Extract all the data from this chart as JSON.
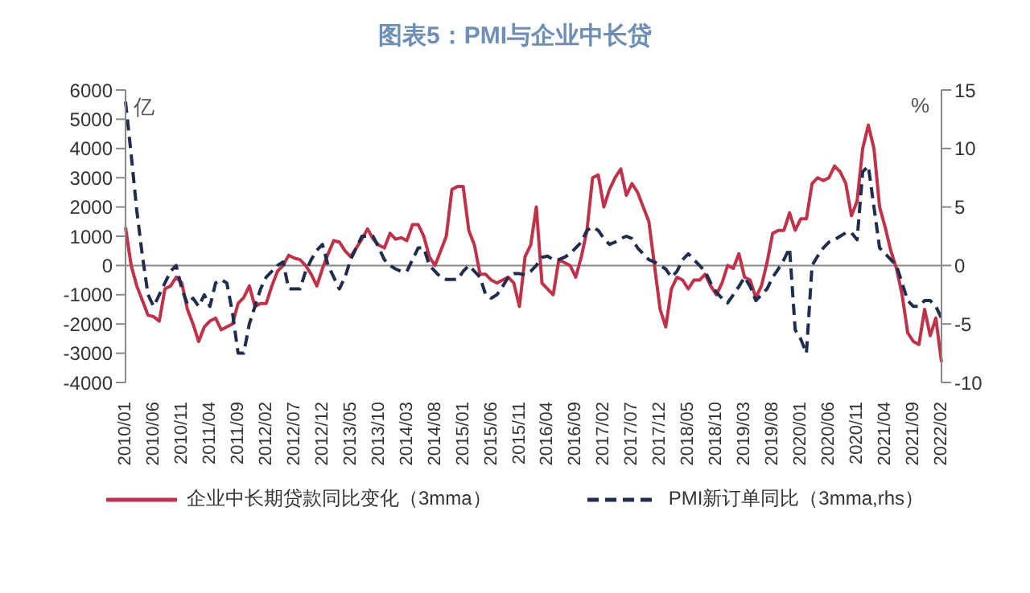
{
  "chart_data": {
    "type": "line",
    "title": "图表5：PMI与企业中长贷",
    "ylabel": "亿",
    "y2label": "%",
    "categories": [
      "2010/01",
      null,
      null,
      null,
      null,
      "2010/06",
      null,
      null,
      null,
      null,
      "2010/11",
      null,
      null,
      null,
      null,
      "2011/04",
      null,
      null,
      null,
      null,
      "2011/09",
      null,
      null,
      null,
      null,
      "2012/02",
      null,
      null,
      null,
      null,
      "2012/07",
      null,
      null,
      null,
      null,
      "2012/12",
      null,
      null,
      null,
      null,
      "2013/05",
      null,
      null,
      null,
      null,
      "2013/10",
      null,
      null,
      null,
      null,
      "2014/03",
      null,
      null,
      null,
      null,
      "2014/08",
      null,
      null,
      null,
      null,
      "2015/01",
      null,
      null,
      null,
      null,
      "2015/06",
      null,
      null,
      null,
      null,
      "2015/11",
      null,
      null,
      null,
      null,
      "2016/04",
      null,
      null,
      null,
      null,
      "2016/09",
      null,
      null,
      null,
      null,
      "2017/02",
      null,
      null,
      null,
      null,
      "2017/07",
      null,
      null,
      null,
      null,
      "2017/12",
      null,
      null,
      null,
      null,
      "2018/05",
      null,
      null,
      null,
      null,
      "2018/10",
      null,
      null,
      null,
      null,
      "2019/03",
      null,
      null,
      null,
      null,
      "2019/08",
      null,
      null,
      null,
      null,
      "2020/01",
      null,
      null,
      null,
      null,
      "2020/06",
      null,
      null,
      null,
      null,
      "2020/11",
      null,
      null,
      null,
      null,
      "2021/04",
      null,
      null,
      null,
      null,
      "2021/09",
      null,
      null,
      null,
      null,
      "2022/02"
    ],
    "series": [
      {
        "name": "企业中长期贷款同比变化（3mma）",
        "color": "#c0324a",
        "line_style": "solid",
        "values": [
          1300,
          0,
          -700,
          -1200,
          -1700,
          -1750,
          -1900,
          -800,
          -700,
          -400,
          -600,
          -1500,
          -2000,
          -2600,
          -2100,
          -1900,
          -1800,
          -2200,
          -2100,
          -2000,
          -1300,
          -1100,
          -700,
          -1400,
          -1300,
          -1300,
          -700,
          -200,
          0,
          350,
          250,
          200,
          0,
          -300,
          -700,
          -100,
          400,
          850,
          800,
          500,
          300,
          600,
          900,
          1250,
          900,
          700,
          600,
          1100,
          900,
          950,
          850,
          1400,
          1400,
          1000,
          300,
          0,
          500,
          1000,
          2600,
          2700,
          2700,
          1200,
          700,
          -300,
          -300,
          -500,
          -600,
          -500,
          -400,
          -600,
          -1400,
          300,
          700,
          2000,
          -600,
          -800,
          -1000,
          200,
          100,
          0,
          -400,
          300,
          1200,
          3000,
          3100,
          2000,
          2600,
          3000,
          3300,
          2400,
          2800,
          2500,
          2000,
          1500,
          0,
          -1500,
          -2100,
          -800,
          -400,
          -500,
          -800,
          -500,
          -500,
          -300,
          -700,
          -1000,
          -600,
          0,
          -100,
          400,
          -400,
          -500,
          -1100,
          -700,
          100,
          1100,
          1200,
          1200,
          1800,
          1200,
          1600,
          1600,
          2800,
          3000,
          2900,
          3000,
          3400,
          3200,
          2800,
          1700,
          2200,
          4000,
          4800,
          4000,
          2000,
          1300,
          500,
          -100,
          -1000,
          -2300,
          -2600,
          -2700,
          -1500,
          -2400,
          -1800,
          -3300
        ]
      },
      {
        "name": "PMI新订单同比（3mma,rhs）",
        "color": "#1f2d4f",
        "line_style": "dashed",
        "axis": "y2",
        "values": [
          14,
          9.5,
          4.7,
          0.8,
          -2.5,
          -3.5,
          -2.5,
          -1.5,
          -0.5,
          0,
          -2,
          -3.3,
          -2.8,
          -3.5,
          -2.5,
          -3.5,
          -1.5,
          -1.2,
          -1.5,
          -4,
          -7.5,
          -7.5,
          -5,
          -3.5,
          -2,
          -1,
          -0.5,
          0,
          0.3,
          -2,
          -2,
          -2,
          -0.5,
          0.5,
          1.3,
          1.8,
          0,
          -1,
          -2,
          -1,
          0.5,
          1.5,
          2.5,
          2.5,
          2.5,
          1.5,
          0.5,
          0,
          -0.3,
          -0.5,
          -0.5,
          0.5,
          1.5,
          1.5,
          0,
          -0.5,
          -1,
          -1.2,
          -1.2,
          -1.2,
          -0.5,
          0,
          -0.5,
          -1,
          -2.5,
          -2.8,
          -2.5,
          -1.8,
          -1,
          -0.7,
          -0.7,
          -0.8,
          -0.5,
          0,
          0.7,
          0.8,
          0.5,
          0.5,
          0.7,
          1,
          1.5,
          2,
          3,
          3.3,
          3,
          2.3,
          1.8,
          2,
          2.3,
          2.5,
          2.3,
          1.5,
          1,
          0.5,
          0.3,
          0,
          -0.3,
          -1,
          -0.5,
          0.5,
          1,
          0.5,
          0,
          -0.5,
          -1.5,
          -2.3,
          -2.8,
          -3.2,
          -2.5,
          -1.8,
          -1,
          -1.8,
          -3,
          -2.5,
          -2,
          -1,
          -0.3,
          0.5,
          1.5,
          -5.5,
          -6.3,
          -7.5,
          0,
          0.8,
          1.5,
          2,
          2.2,
          2.5,
          2.8,
          2.8,
          2.2,
          8,
          8.5,
          5,
          1.5,
          1,
          0.5,
          0,
          -1.5,
          -3,
          -3.5,
          -3.5,
          -3,
          -3,
          -3.5,
          -4.5
        ]
      }
    ],
    "ylim": [
      -4000,
      6000
    ],
    "yticks": [
      -4000,
      -3000,
      -2000,
      -1000,
      0,
      1000,
      2000,
      3000,
      4000,
      5000,
      6000
    ],
    "y2lim": [
      -10,
      15
    ],
    "y2ticks": [
      -10,
      -5,
      0,
      5,
      10,
      15
    ],
    "ref_lines": [
      {
        "axis": "y",
        "value": 0,
        "color": "#888888"
      }
    ],
    "grid": false,
    "legend": "bottom",
    "marker": "none"
  }
}
